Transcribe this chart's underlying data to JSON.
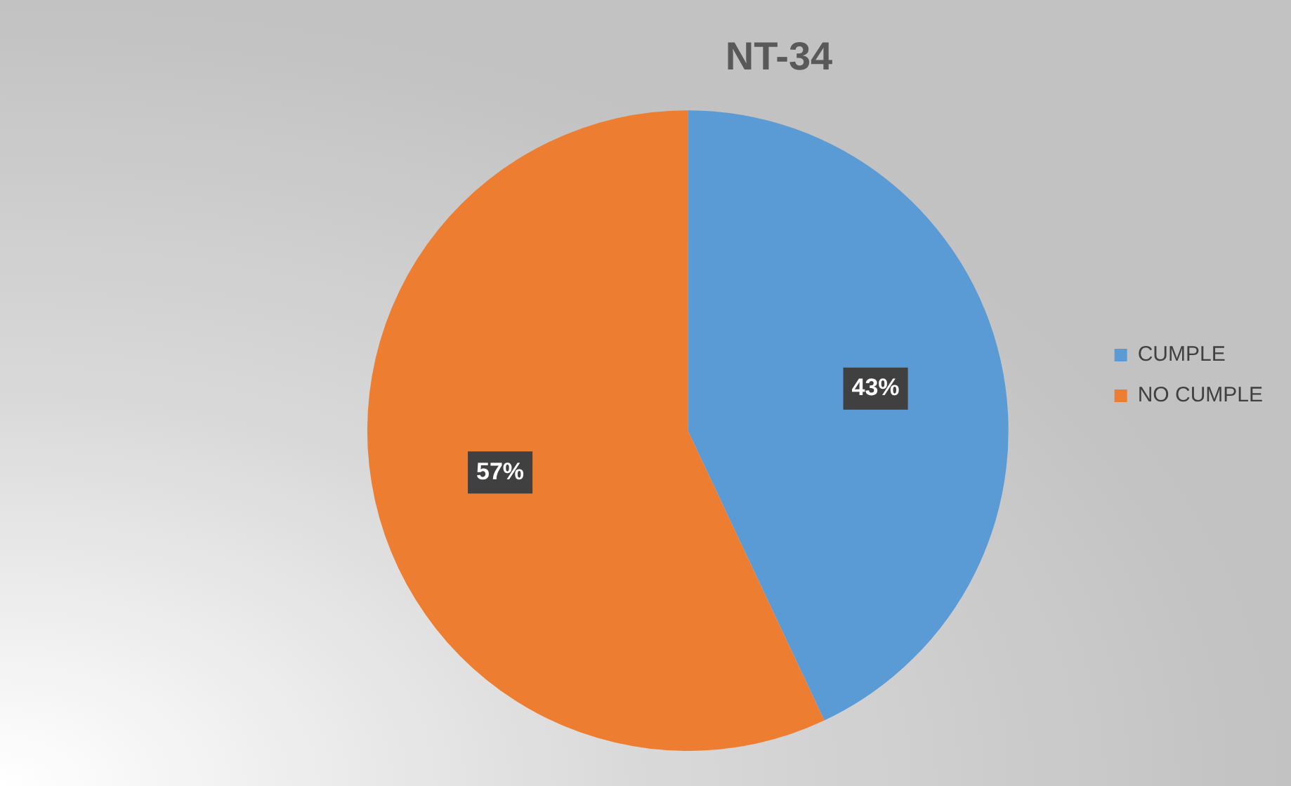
{
  "chart_data": {
    "type": "pie",
    "title": "NT-34",
    "categories": [
      "CUMPLE",
      "NO CUMPLE"
    ],
    "values": [
      43,
      57
    ],
    "colors": [
      "#5b9bd5",
      "#ed7d31"
    ],
    "value_labels": [
      "43%",
      "57%"
    ],
    "legend": "right"
  }
}
